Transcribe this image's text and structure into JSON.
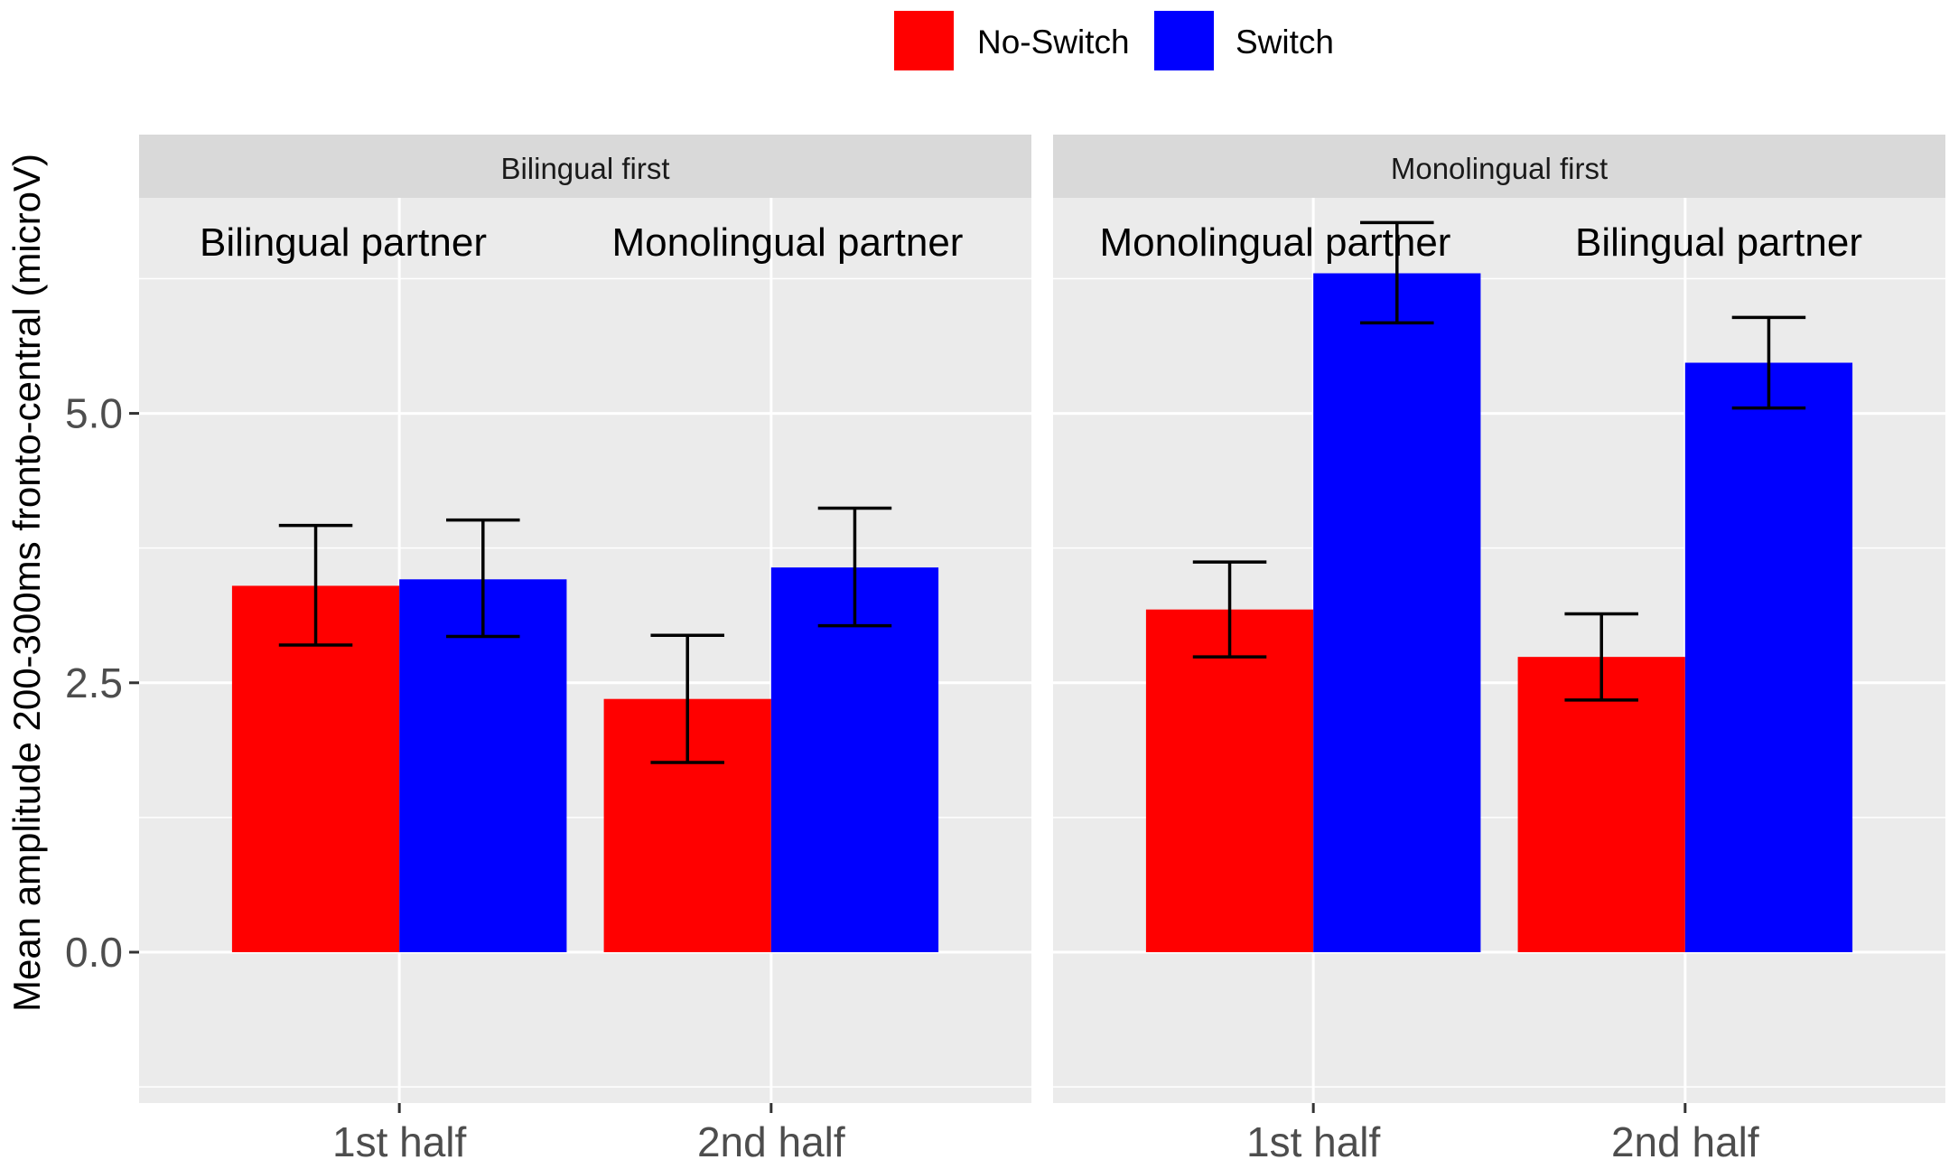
{
  "chart_data": {
    "type": "bar",
    "ylabel": "Mean amplitude 200-300ms fronto-central (microV)",
    "ylim": [
      -1.4,
      7.0
    ],
    "yticks": [
      0.0,
      2.5,
      5.0
    ],
    "ytick_labels": [
      "0.0",
      "2.5",
      "5.0"
    ],
    "grid": true,
    "legend": {
      "placement": "top",
      "entries": [
        {
          "name": "No-Switch",
          "color": "#ff0000"
        },
        {
          "name": "Switch",
          "color": "#0000ff"
        }
      ]
    },
    "facets": [
      {
        "title": "Bilingual first",
        "categories": [
          "1st half",
          "2nd half"
        ],
        "category_annotations": [
          "Bilingual partner",
          "Monolingual partner"
        ],
        "series": [
          {
            "name": "No-Switch",
            "values": [
              3.4,
              2.35
            ],
            "error_low": [
              2.85,
              1.76
            ],
            "error_high": [
              3.96,
              2.94
            ]
          },
          {
            "name": "Switch",
            "values": [
              3.46,
              3.57
            ],
            "error_low": [
              2.93,
              3.03
            ],
            "error_high": [
              4.01,
              4.12
            ]
          }
        ]
      },
      {
        "title": "Monolingual first",
        "categories": [
          "1st half",
          "2nd half"
        ],
        "category_annotations": [
          "Monolingual partner",
          "Bilingual partner"
        ],
        "series": [
          {
            "name": "No-Switch",
            "values": [
              3.18,
              2.74
            ],
            "error_low": [
              2.74,
              2.34
            ],
            "error_high": [
              3.62,
              3.14
            ]
          },
          {
            "name": "Switch",
            "values": [
              6.3,
              5.47
            ],
            "error_low": [
              5.84,
              5.05
            ],
            "error_high": [
              6.77,
              5.89
            ]
          }
        ]
      }
    ]
  }
}
